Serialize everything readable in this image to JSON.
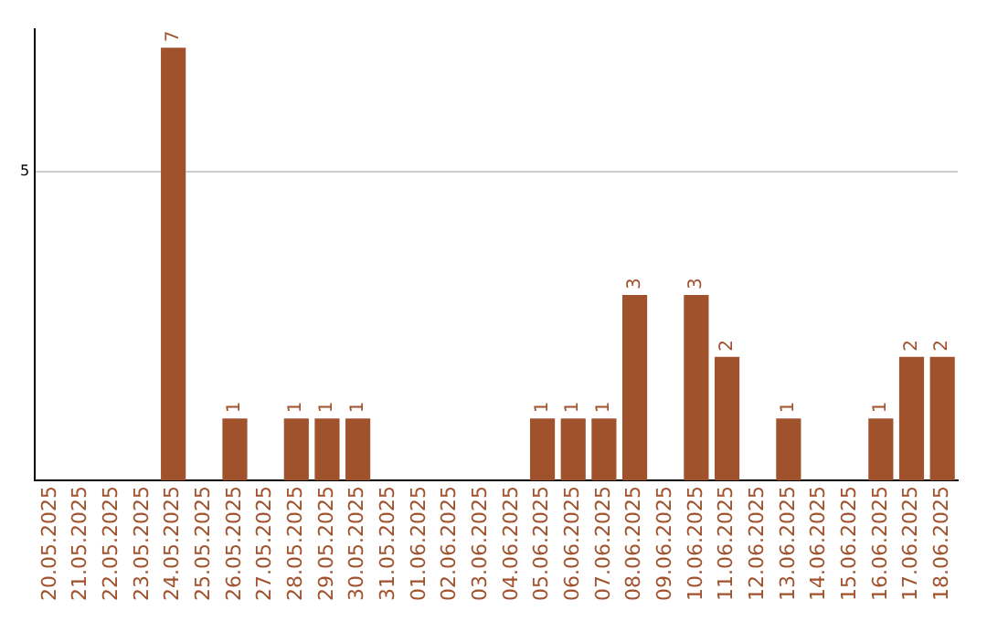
{
  "chart_data": {
    "type": "bar",
    "categories": [
      "20.05.2025",
      "21.05.2025",
      "22.05.2025",
      "23.05.2025",
      "24.05.2025",
      "25.05.2025",
      "26.05.2025",
      "27.05.2025",
      "28.05.2025",
      "29.05.2025",
      "30.05.2025",
      "31.05.2025",
      "01.06.2025",
      "02.06.2025",
      "03.06.2025",
      "04.06.2025",
      "05.06.2025",
      "06.06.2025",
      "07.06.2025",
      "08.06.2025",
      "09.06.2025",
      "10.06.2025",
      "11.06.2025",
      "12.06.2025",
      "13.06.2025",
      "14.06.2025",
      "15.06.2025",
      "16.06.2025",
      "17.06.2025",
      "18.06.2025"
    ],
    "values": [
      0,
      0,
      0,
      0,
      7,
      0,
      1,
      0,
      1,
      1,
      1,
      0,
      0,
      0,
      0,
      0,
      1,
      1,
      1,
      3,
      0,
      3,
      2,
      0,
      1,
      0,
      0,
      1,
      2,
      2
    ],
    "value_labels": [
      null,
      null,
      null,
      null,
      "7",
      null,
      "1",
      null,
      "1",
      "1",
      "1",
      null,
      null,
      null,
      null,
      null,
      "1",
      "1",
      "1",
      "3",
      null,
      "3",
      "2",
      null,
      "1",
      null,
      null,
      "1",
      "2",
      "2"
    ],
    "color": "#a0522d",
    "ylim": [
      0,
      7.3
    ],
    "yticks": [
      5
    ],
    "grid": "y"
  }
}
